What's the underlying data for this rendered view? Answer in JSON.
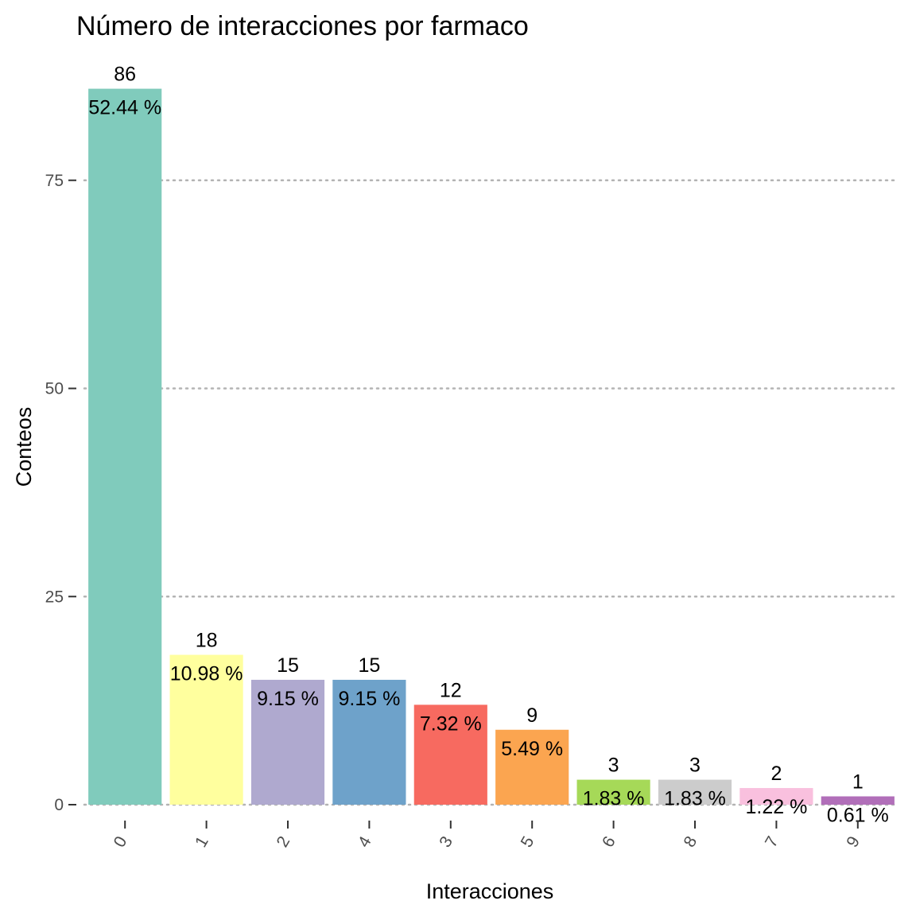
{
  "chart_data": {
    "type": "bar",
    "title": "Número de interacciones por farmaco",
    "xlabel": "Interacciones",
    "ylabel": "Conteos",
    "categories": [
      "0",
      "1",
      "2",
      "4",
      "3",
      "5",
      "6",
      "8",
      "7",
      "9"
    ],
    "values": [
      86,
      18,
      15,
      15,
      12,
      9,
      3,
      3,
      2,
      1
    ],
    "percent_labels": [
      "52.44 %",
      "10.98 %",
      "9.15 %",
      "9.15 %",
      "7.32 %",
      "5.49 %",
      "1.83 %",
      "1.83 %",
      "1.22 %",
      "0.61 %"
    ],
    "colors": [
      "#80cbbc",
      "#ffff9e",
      "#afa9cf",
      "#6ea2ca",
      "#f76a60",
      "#fba550",
      "#a6d958",
      "#cccccc",
      "#f9c0de",
      "#b16fb9"
    ],
    "y_ticks": [
      0,
      25,
      50,
      75
    ],
    "ylim": [
      -4.3,
      90.3
    ],
    "grid": "horizontal-dotted",
    "legend": "none"
  }
}
